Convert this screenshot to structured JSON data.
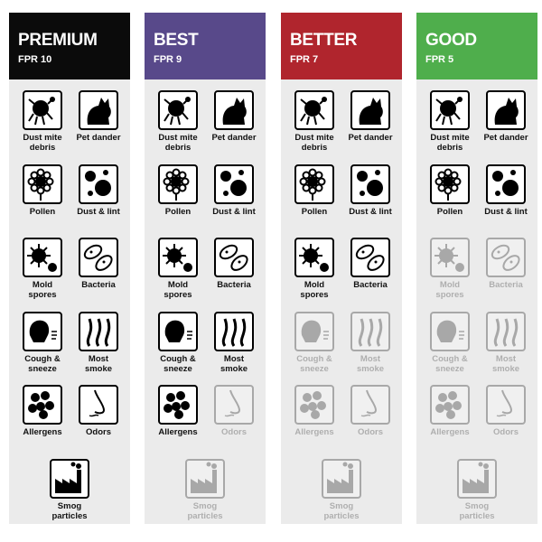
{
  "columns": [
    {
      "name": "PREMIUM",
      "rating": "FPR 10",
      "color": "#0b0b0b",
      "items": [
        {
          "label": "Dust mite debris",
          "active": true
        },
        {
          "label": "Pet dander",
          "active": true
        },
        {
          "label": "Pollen",
          "active": true
        },
        {
          "label": "Dust & lint",
          "active": true
        },
        {
          "label": "Mold spores",
          "active": true
        },
        {
          "label": "Bacteria",
          "active": true
        },
        {
          "label": "Cough & sneeze",
          "active": true
        },
        {
          "label": "Most smoke",
          "active": true
        },
        {
          "label": "Allergens",
          "active": true
        },
        {
          "label": "Odors",
          "active": true
        },
        {
          "label": "Smog particles",
          "active": true
        }
      ]
    },
    {
      "name": "BEST",
      "rating": "FPR 9",
      "color": "#58498a",
      "items": [
        {
          "label": "Dust mite debris",
          "active": true
        },
        {
          "label": "Pet dander",
          "active": true
        },
        {
          "label": "Pollen",
          "active": true
        },
        {
          "label": "Dust & lint",
          "active": true
        },
        {
          "label": "Mold spores",
          "active": true
        },
        {
          "label": "Bacteria",
          "active": true
        },
        {
          "label": "Cough & sneeze",
          "active": true
        },
        {
          "label": "Most smoke",
          "active": true
        },
        {
          "label": "Allergens",
          "active": true
        },
        {
          "label": "Odors",
          "active": false
        },
        {
          "label": "Smog particles",
          "active": false
        }
      ]
    },
    {
      "name": "BETTER",
      "rating": "FPR 7",
      "color": "#b0252d",
      "items": [
        {
          "label": "Dust mite debris",
          "active": true
        },
        {
          "label": "Pet dander",
          "active": true
        },
        {
          "label": "Pollen",
          "active": true
        },
        {
          "label": "Dust & lint",
          "active": true
        },
        {
          "label": "Mold spores",
          "active": true
        },
        {
          "label": "Bacteria",
          "active": true
        },
        {
          "label": "Cough & sneeze",
          "active": false
        },
        {
          "label": "Most smoke",
          "active": false
        },
        {
          "label": "Allergens",
          "active": false
        },
        {
          "label": "Odors",
          "active": false
        },
        {
          "label": "Smog particles",
          "active": false
        }
      ]
    },
    {
      "name": "GOOD",
      "rating": "FPR 5",
      "color": "#4fae4c",
      "items": [
        {
          "label": "Dust mite debris",
          "active": true
        },
        {
          "label": "Pet dander",
          "active": true
        },
        {
          "label": "Pollen",
          "active": true
        },
        {
          "label": "Dust & lint",
          "active": true
        },
        {
          "label": "Mold spores",
          "active": false
        },
        {
          "label": "Bacteria",
          "active": false
        },
        {
          "label": "Cough & sneeze",
          "active": false
        },
        {
          "label": "Most smoke",
          "active": false
        },
        {
          "label": "Allergens",
          "active": false
        },
        {
          "label": "Odors",
          "active": false
        },
        {
          "label": "Smog particles",
          "active": false
        }
      ]
    }
  ]
}
